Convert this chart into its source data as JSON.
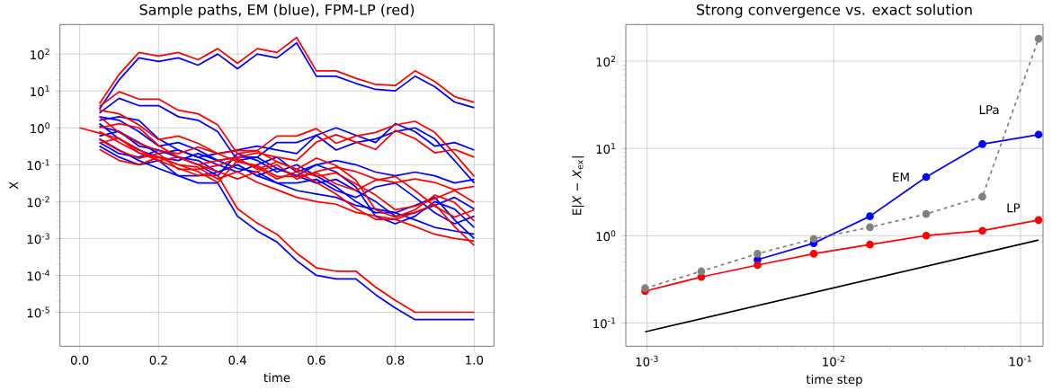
{
  "chart_data": [
    {
      "type": "line",
      "title": "Sample paths, EM (blue), FPM-LP (red)",
      "xlabel": "time",
      "ylabel": "X",
      "log": "y",
      "grid": true,
      "marker": "none",
      "x": [
        0,
        0.05,
        0.1,
        0.15,
        0.2,
        0.25,
        0.3,
        0.35,
        0.4,
        0.45,
        0.5,
        0.55,
        0.6,
        0.65,
        0.7,
        0.75,
        0.8,
        0.85,
        0.9,
        0.95,
        1.0
      ],
      "xlim": [
        -0.05,
        1.05
      ],
      "ylim": [
        1.2e-06,
        630
      ],
      "xticks": [
        {
          "value": 0,
          "label": "0.0"
        },
        {
          "value": 0.2,
          "label": "0.2"
        },
        {
          "value": 0.4,
          "label": "0.4"
        },
        {
          "value": 0.6,
          "label": "0.6"
        },
        {
          "value": 0.8,
          "label": "0.8"
        },
        {
          "value": 1.0,
          "label": "1.0"
        }
      ],
      "yticks": [
        {
          "value": 1e-05,
          "label": "10$^{-5}$"
        },
        {
          "value": 0.0001,
          "label": "10$^{-4}$"
        },
        {
          "value": 0.001,
          "label": "10$^{-3}$"
        },
        {
          "value": 0.01,
          "label": "10$^{-2}$"
        },
        {
          "value": 0.1,
          "label": "10$^{-1}$"
        },
        {
          "value": 1,
          "label": "10$^{0}$"
        },
        {
          "value": 10,
          "label": "10$^{1}$"
        },
        {
          "value": 100,
          "label": "10$^{2}$"
        }
      ],
      "series": [
        {
          "color": "#0000ff",
          "values": [
            null,
            3.2,
            20,
            79,
            63,
            79,
            50,
            100,
            40,
            100,
            79,
            200,
            25,
            25,
            16,
            11,
            10,
            25,
            13,
            5,
            3.5
          ]
        },
        {
          "color": "#0000ff",
          "values": [
            null,
            0.5,
            0.25,
            0.13,
            0.079,
            0.05,
            0.032,
            0.032,
            0.004,
            0.0016,
            0.0008,
            0.00025,
            0.0001,
            8e-05,
            8e-05,
            3e-05,
            1.3e-05,
            6.3e-06,
            6.3e-06,
            6.3e-06,
            6.3e-06
          ]
        },
        {
          "color": "#0000ff",
          "values": [
            null,
            2.5,
            6.3,
            4,
            4,
            2,
            1.6,
            0.79,
            0.13,
            0.16,
            0.4,
            0.4,
            0.63,
            0.25,
            0.4,
            0.5,
            0.79,
            1,
            0.5,
            0.13,
            0.032
          ]
        },
        {
          "color": "#0000ff",
          "values": [
            null,
            1.6,
            2,
            1.6,
            0.5,
            0.25,
            0.16,
            0.2,
            0.25,
            0.32,
            0.25,
            0.2,
            0.63,
            1,
            0.63,
            0.4,
            1.3,
            0.79,
            0.32,
            0.4,
            0.25
          ]
        },
        {
          "color": "#0000ff",
          "values": [
            null,
            0.32,
            0.16,
            0.1,
            0.13,
            0.05,
            0.05,
            0.063,
            0.1,
            0.05,
            0.079,
            0.05,
            0.032,
            0.04,
            0.02,
            0.01,
            0.004,
            0.005,
            0.0079,
            0.013,
            0.0063
          ]
        },
        {
          "color": "#0000ff",
          "values": [
            null,
            0.6,
            0.8,
            0.32,
            0.25,
            0.16,
            0.13,
            0.063,
            0.1,
            0.05,
            0.032,
            0.02,
            0.016,
            0.013,
            0.0079,
            0.0063,
            0.005,
            0.0032,
            0.002,
            0.0016,
            0.0013
          ]
        },
        {
          "color": "#0000ff",
          "values": [
            null,
            1.3,
            0.5,
            0.25,
            0.16,
            0.13,
            0.2,
            0.13,
            0.079,
            0.063,
            0.032,
            0.032,
            0.04,
            0.02,
            0.013,
            0.025,
            0.032,
            0.013,
            0.005,
            0.0025,
            0.004
          ]
        },
        {
          "color": "#0000ff",
          "values": [
            null,
            0.4,
            0.2,
            0.16,
            0.25,
            0.16,
            0.1,
            0.05,
            0.2,
            0.13,
            0.063,
            0.1,
            0.05,
            0.025,
            0.01,
            0.005,
            0.005,
            0.0079,
            0.013,
            0.0032,
            0.001
          ]
        },
        {
          "color": "#0000ff",
          "values": [
            null,
            2,
            1.6,
            0.79,
            0.32,
            0.4,
            0.25,
            0.13,
            0.16,
            0.16,
            0.079,
            0.05,
            0.1,
            0.063,
            0.025,
            0.004,
            0.0025,
            0.004,
            0.01,
            0.0063,
            0.002
          ]
        },
        {
          "color": "#0000ff",
          "values": [
            null,
            1.1,
            0.79,
            0.4,
            0.2,
            0.25,
            0.16,
            0.1,
            0.063,
            0.1,
            0.16,
            0.063,
            0.1,
            0.13,
            0.1,
            0.063,
            0.05,
            0.063,
            0.05,
            0.032,
            0.04
          ]
        },
        {
          "color": "#ff0000",
          "values": [
            null,
            4.5,
            28,
            110,
            88,
            110,
            70,
            140,
            56,
            140,
            110,
            280,
            35,
            35,
            22,
            15,
            14,
            35,
            18,
            7,
            4.9
          ]
        },
        {
          "color": "#ff0000",
          "values": [
            null,
            0.8,
            0.4,
            0.21,
            0.13,
            0.08,
            0.051,
            0.051,
            0.0064,
            0.0026,
            0.0013,
            0.0004,
            0.00016,
            0.00013,
            0.00013,
            4.8e-05,
            2.1e-05,
            1e-05,
            1e-05,
            1e-05,
            1e-05
          ]
        },
        {
          "color": "#ff0000",
          "values": [
            null,
            3.8,
            9.5,
            6,
            6,
            3,
            2.4,
            1.2,
            0.2,
            0.24,
            0.6,
            0.6,
            0.95,
            0.38,
            0.6,
            0.75,
            1.2,
            1.5,
            0.75,
            0.2,
            0.048
          ]
        },
        {
          "color": "#ff0000",
          "values": [
            null,
            1.0,
            1.3,
            1.0,
            0.33,
            0.16,
            0.1,
            0.13,
            0.16,
            0.21,
            0.16,
            0.13,
            0.41,
            0.65,
            0.41,
            0.26,
            0.85,
            0.51,
            0.21,
            0.26,
            0.16
          ]
        },
        {
          "color": "#ff0000",
          "values": [
            null,
            0.48,
            0.24,
            0.15,
            0.2,
            0.075,
            0.075,
            0.095,
            0.15,
            0.075,
            0.12,
            0.075,
            0.048,
            0.06,
            0.03,
            0.015,
            0.006,
            0.0075,
            0.012,
            0.02,
            0.0095
          ]
        },
        {
          "color": "#ff0000",
          "values": [
            null,
            0.39,
            0.52,
            0.21,
            0.16,
            0.1,
            0.085,
            0.041,
            0.065,
            0.033,
            0.021,
            0.013,
            0.01,
            0.0085,
            0.0051,
            0.0041,
            0.0033,
            0.0021,
            0.0013,
            0.001,
            0.00085
          ]
        },
        {
          "color": "#ff0000",
          "values": [
            null,
            2,
            0.75,
            0.38,
            0.24,
            0.2,
            0.3,
            0.2,
            0.12,
            0.095,
            0.048,
            0.048,
            0.06,
            0.03,
            0.02,
            0.038,
            0.048,
            0.02,
            0.0075,
            0.0038,
            0.006
          ]
        },
        {
          "color": "#ff0000",
          "values": [
            null,
            0.26,
            0.13,
            0.1,
            0.16,
            0.1,
            0.065,
            0.033,
            0.13,
            0.085,
            0.041,
            0.065,
            0.033,
            0.016,
            0.0065,
            0.0033,
            0.0033,
            0.0051,
            0.0085,
            0.0021,
            0.00065
          ]
        },
        {
          "color": "#ff0000",
          "values": [
            null,
            3,
            2.4,
            1.2,
            0.48,
            0.6,
            0.38,
            0.2,
            0.24,
            0.24,
            0.12,
            0.075,
            0.15,
            0.095,
            0.038,
            0.006,
            0.0038,
            0.006,
            0.015,
            0.0095,
            0.003
          ]
        },
        {
          "color": "#ff0000",
          "values": [
            1,
            0.72,
            0.51,
            0.26,
            0.13,
            0.16,
            0.1,
            0.065,
            0.041,
            0.065,
            0.1,
            0.041,
            0.065,
            0.085,
            0.065,
            0.041,
            0.033,
            0.041,
            0.033,
            0.021,
            0.026
          ]
        }
      ]
    },
    {
      "type": "line",
      "title": "Strong convergence vs. exact solution",
      "xlabel": "time step",
      "ylabel": "E|*X* − *X*$_{ex}$|",
      "log": "xy",
      "grid": true,
      "marker": "circle",
      "x": [
        0.0009765625,
        0.001953125,
        0.00390625,
        0.0078125,
        0.015625,
        0.03125,
        0.0625,
        0.125
      ],
      "xlim": [
        0.00077,
        0.132
      ],
      "ylim": [
        0.054,
        263
      ],
      "xticks": [
        {
          "value": 0.001,
          "label": "10$^{-3}$"
        },
        {
          "value": 0.01,
          "label": "10$^{-2}$"
        },
        {
          "value": 0.1,
          "label": "10$^{-1}$"
        }
      ],
      "yticks": [
        {
          "value": 0.1,
          "label": "10$^{-1}$"
        },
        {
          "value": 1,
          "label": "10$^{0}$"
        },
        {
          "value": 10,
          "label": "10$^{1}$"
        },
        {
          "value": 100,
          "label": "10$^{2}$"
        }
      ],
      "series": [
        {
          "name": "EM",
          "color": "#0000ff",
          "values": [
            null,
            null,
            0.53,
            0.82,
            1.67,
            4.7,
            11.2,
            14.4
          ]
        },
        {
          "name": "LP",
          "color": "#ff0000",
          "values": [
            0.231,
            0.336,
            0.46,
            0.62,
            0.79,
            1.0,
            1.14,
            1.51
          ]
        },
        {
          "name": "LPa",
          "color": "#808080",
          "line_style": "dashed",
          "values": [
            0.25,
            0.39,
            0.62,
            0.92,
            1.25,
            1.77,
            2.8,
            181
          ]
        },
        {
          "color": "#000000",
          "marker": "none",
          "x": [
            0.0009765625,
            0.125
          ],
          "values": [
            0.079,
            0.89
          ]
        }
      ]
    }
  ]
}
